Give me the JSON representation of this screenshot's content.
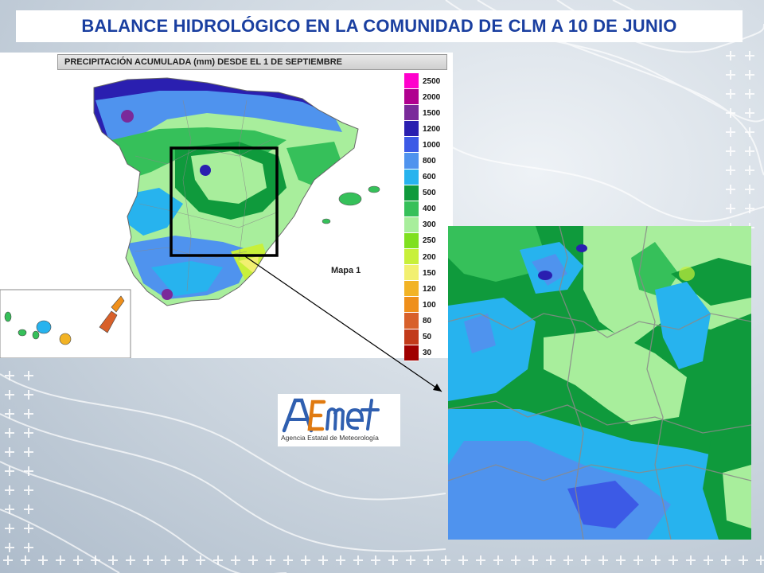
{
  "title": "BALANCE HIDROLÓGICO EN LA COMUNIDAD DE CLM A 10 DE JUNIO",
  "map": {
    "header": "PRECIPITACIÓN ACUMULADA (mm) DESDE EL 1 DE SEPTIEMBRE",
    "label": "Mapa 1"
  },
  "legend": [
    {
      "value": "2500",
      "color": "#ff00cc"
    },
    {
      "value": "2000",
      "color": "#b0008f"
    },
    {
      "value": "1500",
      "color": "#7a2a9a"
    },
    {
      "value": "1200",
      "color": "#2a1fb0"
    },
    {
      "value": "1000",
      "color": "#3c5ae6"
    },
    {
      "value": "800",
      "color": "#4f93ee"
    },
    {
      "value": "600",
      "color": "#27b3ee"
    },
    {
      "value": "500",
      "color": "#0f9a3c"
    },
    {
      "value": "400",
      "color": "#36c05a"
    },
    {
      "value": "300",
      "color": "#a8ee9c"
    },
    {
      "value": "250",
      "color": "#7fe01f"
    },
    {
      "value": "200",
      "color": "#c8f03a"
    },
    {
      "value": "150",
      "color": "#f2f070"
    },
    {
      "value": "120",
      "color": "#f2b325"
    },
    {
      "value": "100",
      "color": "#ef8f1a"
    },
    {
      "value": "80",
      "color": "#d8602a"
    },
    {
      "value": "50",
      "color": "#c23a1a"
    },
    {
      "value": "30",
      "color": "#a00000"
    }
  ],
  "logo": {
    "wordmark": "AEmet",
    "subtitle": "Agencia Estatal de Meteorología"
  }
}
